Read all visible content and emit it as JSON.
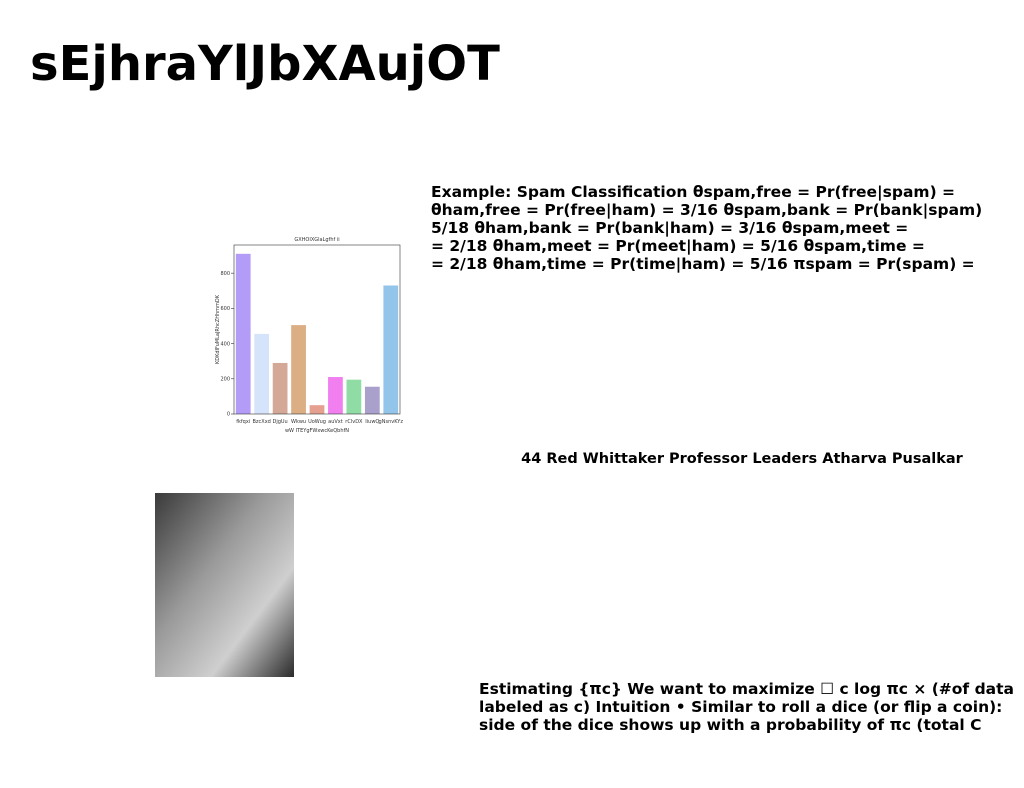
{
  "header": {
    "title": "sEjhraYlJbXAujOT"
  },
  "text_block_1": {
    "lines": [
      "Example: Spam Classification θspam,free = Pr(free|spam) =",
      "θham,free = Pr(free|ham) = 3/16 θspam,bank = Pr(bank|spam)",
      "5/18 θham,bank = Pr(bank|ham) = 3/16 θspam,meet =",
      "= 2/18 θham,meet = Pr(meet|ham) = 5/16 θspam,time =",
      "= 2/18 θham,time = Pr(time|ham) = 5/16 πspam = Pr(spam) ="
    ]
  },
  "caption": "44 Red Whittaker Professor Leaders Atharva Pusalkar",
  "text_block_2": {
    "lines": [
      "Estimating {πc} We want to maximize ☐ c log πc × (#of data",
      "labeled as c) Intuition • Similar to roll a dice (or flip a coin):",
      "side of the dice shows up with a probability of πc (total C"
    ]
  },
  "chart_data": {
    "type": "bar",
    "title": "GXHOIXGlaLgfhf ii",
    "x_label": "wW ITEYgFWxwcKeQbhfN",
    "y_label": "KDKdIFuMLaJRhcZHhmmDK",
    "categories": [
      "fkfqxi",
      "BzcXxd",
      "DjgUu",
      "Wkwu",
      "UoWug",
      "auVxt",
      "rClvDX",
      "IiuwQ",
      "gNsnvKYz"
    ],
    "values": [
      910,
      455,
      290,
      505,
      50,
      210,
      195,
      155,
      730
    ],
    "colors": [
      "#b39cf8",
      "#d6e4fb",
      "#d4a896",
      "#dcae84",
      "#e5a08f",
      "#f27ff0",
      "#8fdca4",
      "#a9a0cc",
      "#93c5ea"
    ],
    "ylim": [
      0,
      960
    ],
    "yticks": [
      0,
      200,
      400,
      600,
      800
    ]
  }
}
